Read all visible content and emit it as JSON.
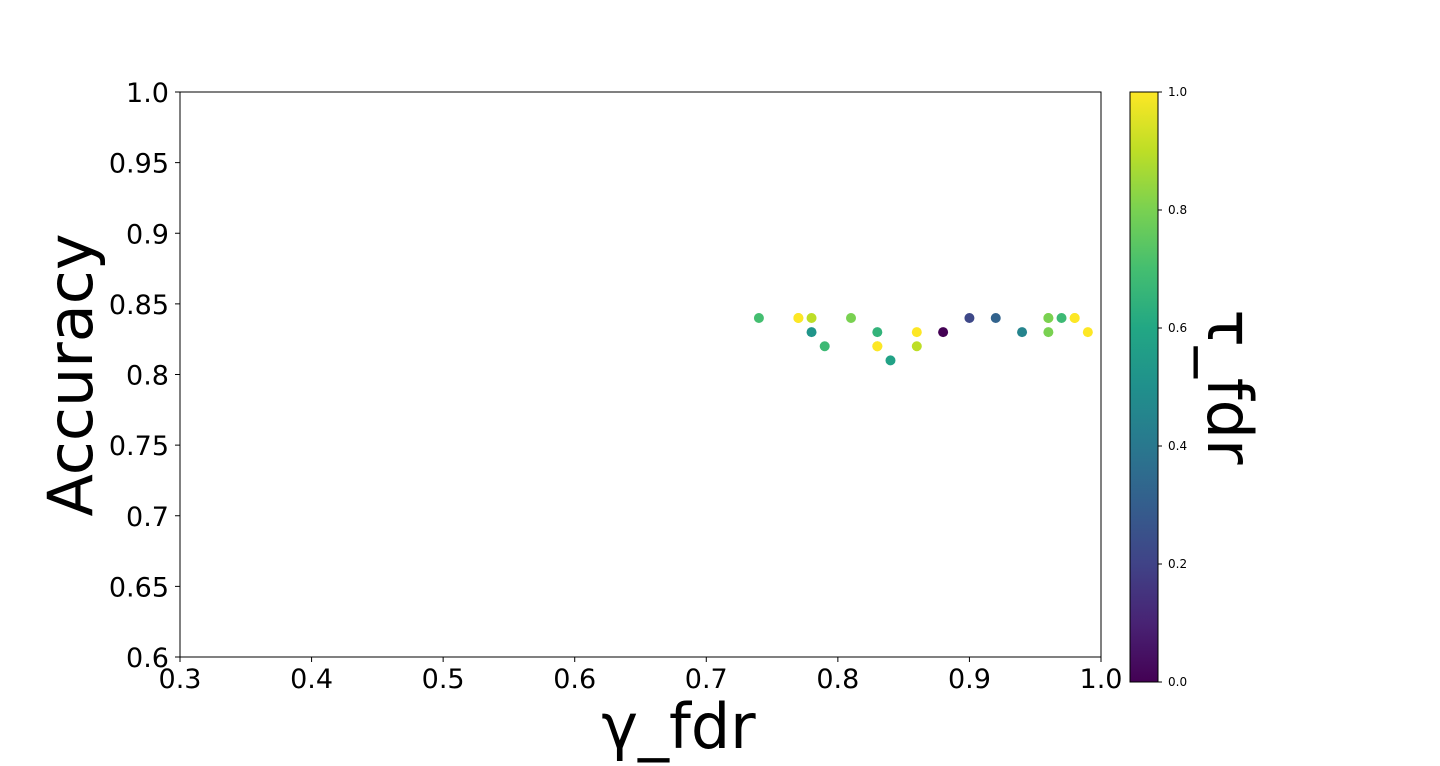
{
  "chart_data": {
    "type": "scatter",
    "title": "",
    "xlabel": "γ_fdr",
    "ylabel": "Accuracy",
    "colorbar_label": "τ_fdr",
    "xlim": [
      0.3,
      1.0
    ],
    "ylim": [
      0.6,
      1.0
    ],
    "clim": [
      0.0,
      1.0
    ],
    "colormap": "viridis",
    "grid": false,
    "x_ticks": [
      "0.3",
      "0.4",
      "0.5",
      "0.6",
      "0.7",
      "0.8",
      "0.9",
      "1.0"
    ],
    "y_ticks": [
      "0.6",
      "0.65",
      "0.7",
      "0.75",
      "0.8",
      "0.85",
      "0.9",
      "0.95",
      "1.0"
    ],
    "colorbar_ticks": [
      "0.0",
      "0.2",
      "0.4",
      "0.6",
      "0.8",
      "1.0"
    ],
    "points": [
      {
        "x": 0.74,
        "y": 0.84,
        "c": 0.7
      },
      {
        "x": 0.77,
        "y": 0.84,
        "c": 0.95
      },
      {
        "x": 0.77,
        "y": 0.84,
        "c": 1.0
      },
      {
        "x": 0.78,
        "y": 0.84,
        "c": 0.9
      },
      {
        "x": 0.78,
        "y": 0.83,
        "c": 0.52
      },
      {
        "x": 0.79,
        "y": 0.82,
        "c": 0.68
      },
      {
        "x": 0.81,
        "y": 0.84,
        "c": 0.8
      },
      {
        "x": 0.83,
        "y": 0.83,
        "c": 0.65
      },
      {
        "x": 0.83,
        "y": 0.82,
        "c": 0.95
      },
      {
        "x": 0.83,
        "y": 0.82,
        "c": 1.0
      },
      {
        "x": 0.84,
        "y": 0.81,
        "c": 0.58
      },
      {
        "x": 0.86,
        "y": 0.83,
        "c": 1.0
      },
      {
        "x": 0.86,
        "y": 0.82,
        "c": 0.9
      },
      {
        "x": 0.88,
        "y": 0.83,
        "c": 0.0
      },
      {
        "x": 0.9,
        "y": 0.84,
        "c": 0.22
      },
      {
        "x": 0.92,
        "y": 0.84,
        "c": 0.32
      },
      {
        "x": 0.94,
        "y": 0.83,
        "c": 0.45
      },
      {
        "x": 0.96,
        "y": 0.84,
        "c": 0.9
      },
      {
        "x": 0.96,
        "y": 0.84,
        "c": 0.8
      },
      {
        "x": 0.96,
        "y": 0.83,
        "c": 0.8
      },
      {
        "x": 0.97,
        "y": 0.84,
        "c": 0.68
      },
      {
        "x": 0.98,
        "y": 0.84,
        "c": 0.95
      },
      {
        "x": 0.98,
        "y": 0.84,
        "c": 1.0
      },
      {
        "x": 0.99,
        "y": 0.83,
        "c": 1.0
      }
    ]
  }
}
